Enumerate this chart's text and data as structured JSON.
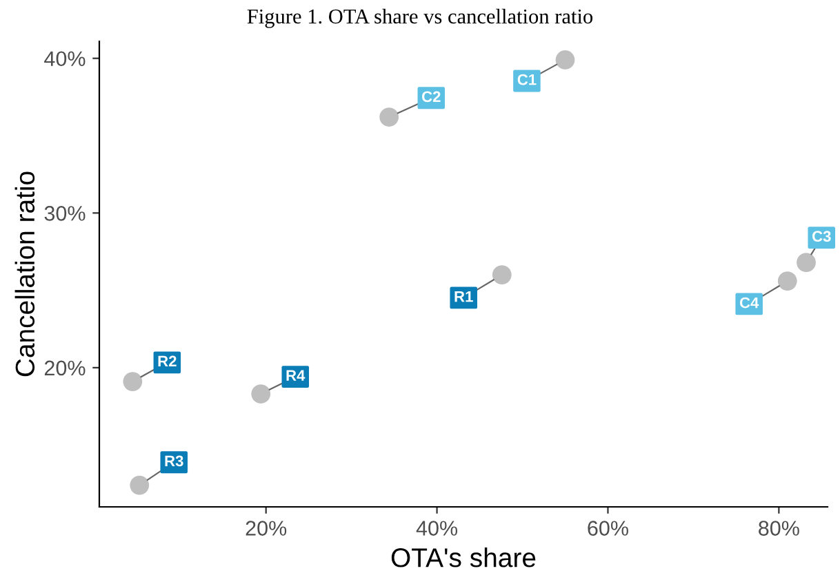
{
  "chart_data": {
    "type": "scatter",
    "title": "Figure 1. OTA share vs cancellation ratio",
    "xlabel": "OTA's share",
    "ylabel": "Cancellation ratio",
    "series": [
      {
        "color": "#bebebe",
        "x": [
          55,
          34.4,
          83.2,
          81
        ],
        "values": [
          39.9,
          36.2,
          26.8,
          25.6
        ],
        "value_labels": [
          "C1",
          "C2",
          "C3",
          "C4"
        ]
      },
      {
        "color": "#bebebe",
        "x": [
          47.6,
          4.4,
          5.2,
          19.4
        ],
        "values": [
          26.0,
          19.1,
          12.4,
          18.3
        ],
        "value_labels": [
          "R1",
          "R2",
          "R3",
          "R4"
        ]
      }
    ],
    "marker": "circle",
    "xlim": [
      0.5,
      85.7
    ],
    "ylim": [
      11.0,
      41.1
    ],
    "xticks": [
      {
        "value": 20,
        "label": "20%"
      },
      {
        "value": 40,
        "label": "40%"
      },
      {
        "value": 60,
        "label": "60%"
      },
      {
        "value": 80,
        "label": "80%"
      }
    ],
    "yticks": [
      {
        "value": 20,
        "label": "20%"
      },
      {
        "value": 30,
        "label": "30%"
      },
      {
        "value": 40,
        "label": "40%"
      }
    ]
  }
}
